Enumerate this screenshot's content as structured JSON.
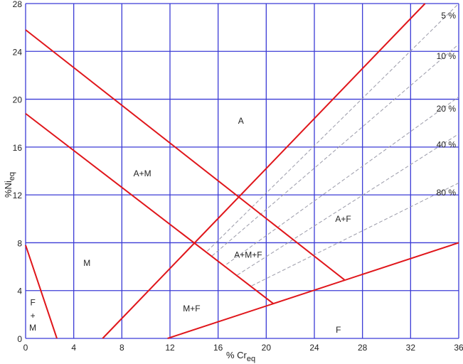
{
  "chart_data": {
    "type": "line",
    "xlabel": "% Cr",
    "xlabel_sub": "eq",
    "ylabel": "%Ni",
    "ylabel_sub": "eq",
    "xlim": [
      0,
      36
    ],
    "ylim": [
      0,
      28
    ],
    "xticks": [
      "0",
      "4",
      "8",
      "12",
      "16",
      "20",
      "24",
      "28",
      "32",
      "36"
    ],
    "yticks": [
      "0",
      "4",
      "8",
      "12",
      "16",
      "20",
      "24",
      "28"
    ],
    "grid": true,
    "colors": {
      "grid": "#3b3bd6",
      "boundary": "#e0161b",
      "ferrite_lines": "#9a9aa8"
    },
    "boundary_lines": [
      {
        "points": [
          [
            0,
            7.8
          ],
          [
            2.6,
            0
          ]
        ]
      },
      {
        "points": [
          [
            0,
            25.8
          ],
          [
            26.5,
            4.9
          ]
        ]
      },
      {
        "points": [
          [
            0,
            18.8
          ],
          [
            20.6,
            2.9
          ]
        ]
      },
      {
        "points": [
          [
            6.4,
            0
          ],
          [
            33.2,
            28
          ]
        ]
      },
      {
        "points": [
          [
            11.8,
            0
          ],
          [
            36,
            8
          ]
        ]
      }
    ],
    "ferrite_lines": [
      {
        "name": "5 %",
        "points": [
          [
            15.1,
            7.3
          ],
          [
            36,
            28
          ]
        ]
      },
      {
        "name": "10 %",
        "points": [
          [
            15.5,
            6.9
          ],
          [
            36,
            24.6
          ]
        ]
      },
      {
        "name": "20 %",
        "points": [
          [
            16.7,
            6.2
          ],
          [
            36,
            20.2
          ]
        ]
      },
      {
        "name": "40 %",
        "points": [
          [
            17.6,
            5.3
          ],
          [
            36,
            17.1
          ]
        ]
      },
      {
        "name": "80 %",
        "points": [
          [
            18.8,
            4.4
          ],
          [
            36,
            13.0
          ]
        ]
      }
    ],
    "ferrite_labels": [
      {
        "text": "5 %",
        "y": 27
      },
      {
        "text": "10 %",
        "y": 23.6
      },
      {
        "text": "20 %",
        "y": 19.2
      },
      {
        "text": "40 %",
        "y": 16.2
      },
      {
        "text": "80 %",
        "y": 12.2
      }
    ],
    "regions": [
      {
        "text": "A",
        "x": 17.9,
        "y": 18.2
      },
      {
        "text": "A+M",
        "x": 9.7,
        "y": 13.8
      },
      {
        "text": "M",
        "x": 5.1,
        "y": 6.3
      },
      {
        "text": "F",
        "x": 0.6,
        "y": 3.0
      },
      {
        "text": "+",
        "x": 0.6,
        "y": 1.9
      },
      {
        "text": "M",
        "x": 0.6,
        "y": 0.9
      },
      {
        "text": "M+F",
        "x": 13.8,
        "y": 2.5
      },
      {
        "text": "A+M+F",
        "x": 18.5,
        "y": 7.0
      },
      {
        "text": "A+F",
        "x": 26.4,
        "y": 10.0
      },
      {
        "text": "F",
        "x": 26.0,
        "y": 0.7
      }
    ]
  }
}
